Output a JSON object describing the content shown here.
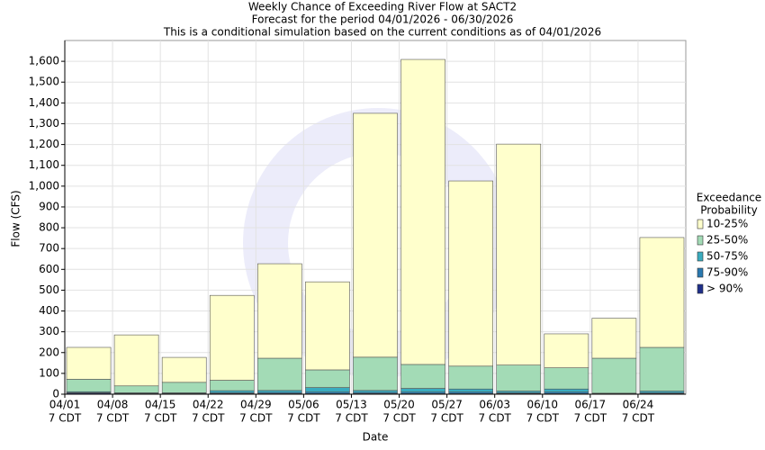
{
  "chart_data": {
    "type": "stacked-bar",
    "title": "Weekly Chance of Exceeding River Flow at SACT2",
    "subtitle": "Forecast for the period 04/01/2026 - 06/30/2026",
    "note": "This is a conditional simulation based on the current conditions as of 04/01/2026",
    "x_label": "Date",
    "y_label": "Flow (CFS)",
    "categories": [
      "04/01",
      "04/08",
      "04/15",
      "04/22",
      "04/29",
      "05/06",
      "05/13",
      "05/20",
      "05/27",
      "06/03",
      "06/10",
      "06/17",
      "06/24"
    ],
    "tick_sublabel": "7 CDT",
    "legend_title": [
      "Exceedance",
      "Probability"
    ],
    "series": [
      {
        "name": "> 90%",
        "color": "#1f2f8a",
        "values": [
          5,
          2,
          2,
          3,
          3,
          3,
          3,
          3,
          3,
          3,
          3,
          2,
          3
        ]
      },
      {
        "name": "75-90%",
        "color": "#2a79b0",
        "values": [
          3,
          2,
          2,
          4,
          5,
          7,
          5,
          7,
          7,
          4,
          7,
          1,
          4
        ]
      },
      {
        "name": "50-75%",
        "color": "#3aacbf",
        "values": [
          4,
          3,
          3,
          10,
          10,
          22,
          10,
          18,
          15,
          8,
          15,
          2,
          8
        ]
      },
      {
        "name": "25-50%",
        "color": "#a3dbb6",
        "values": [
          60,
          33,
          50,
          50,
          155,
          85,
          160,
          115,
          110,
          125,
          102,
          168,
          210
        ]
      },
      {
        "name": "10-25%",
        "color": "#ffffcc",
        "values": [
          153,
          245,
          120,
          408,
          454,
          423,
          1172,
          1466,
          890,
          1062,
          163,
          192,
          528
        ]
      }
    ],
    "ylim": [
      0,
      1700
    ],
    "yticks": [
      0,
      100,
      200,
      300,
      400,
      500,
      600,
      700,
      800,
      900,
      {
        "value": 1000,
        "label": "1,000"
      },
      {
        "value": 1100,
        "label": "1,100"
      },
      {
        "value": 1200,
        "label": "1,200"
      },
      {
        "value": 1300,
        "label": "1,300"
      },
      {
        "value": 1400,
        "label": "1,400"
      },
      {
        "value": 1500,
        "label": "1,500"
      },
      {
        "value": 1600,
        "label": "1,600"
      }
    ],
    "grid": true
  }
}
